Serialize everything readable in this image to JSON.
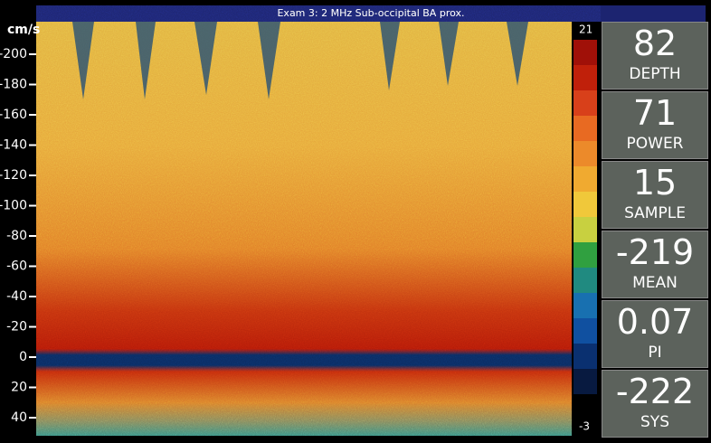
{
  "header": {
    "title": "Exam 3: 2 MHz Sub-occipital  BA prox."
  },
  "axis": {
    "unit": "cm/s",
    "ticks": [
      -200,
      -180,
      -160,
      -140,
      -120,
      -100,
      -80,
      -60,
      -40,
      -20,
      0,
      20,
      40
    ]
  },
  "scale": {
    "top": "21",
    "bottom": "-3"
  },
  "readouts": [
    {
      "value": "82",
      "label": "DEPTH"
    },
    {
      "value": "71",
      "label": "POWER"
    },
    {
      "value": "15",
      "label": "SAMPLE"
    },
    {
      "value": "-219",
      "label": "MEAN"
    },
    {
      "value": "0.07",
      "label": "PI"
    },
    {
      "value": "-222",
      "label": "SYS"
    }
  ]
}
